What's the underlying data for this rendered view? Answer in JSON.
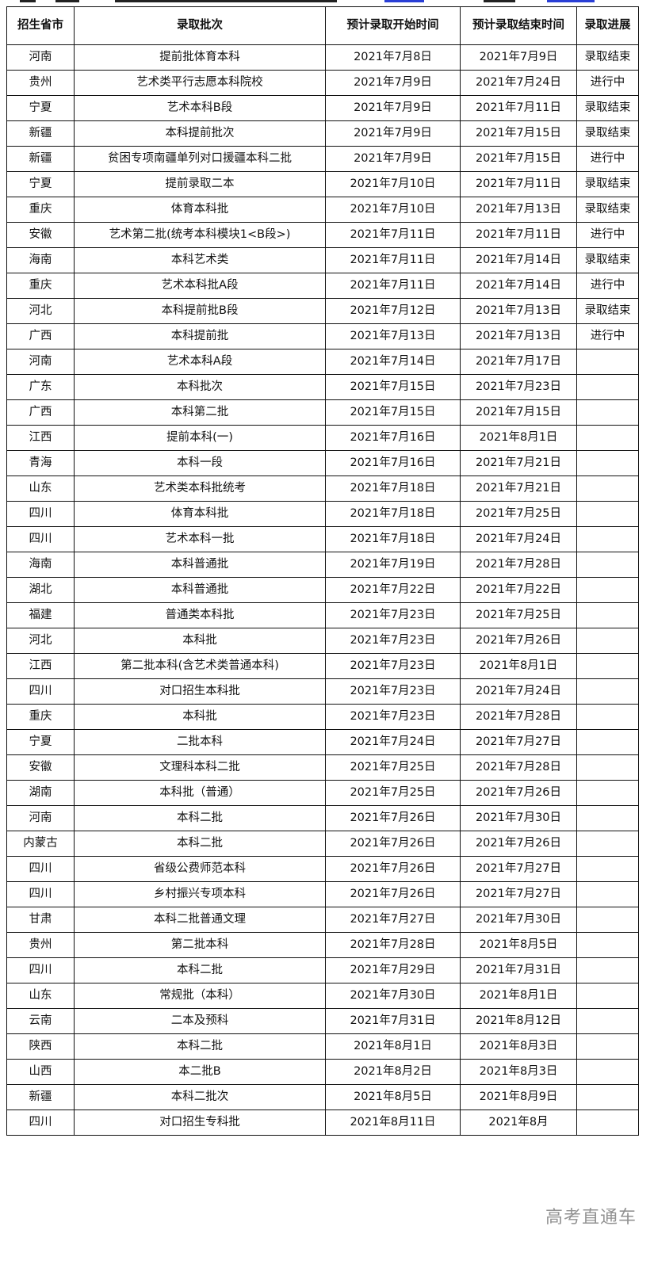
{
  "table": {
    "headers": [
      "招生省市",
      "录取批次",
      "预计录取开始时间",
      "预计录取结束时间",
      "录取进展"
    ],
    "rows": [
      [
        "河南",
        "提前批体育本科",
        "2021年7月8日",
        "2021年7月9日",
        "录取结束"
      ],
      [
        "贵州",
        "艺术类平行志愿本科院校",
        "2021年7月9日",
        "2021年7月24日",
        "进行中"
      ],
      [
        "宁夏",
        "艺术本科B段",
        "2021年7月9日",
        "2021年7月11日",
        "录取结束"
      ],
      [
        "新疆",
        "本科提前批次",
        "2021年7月9日",
        "2021年7月15日",
        "录取结束"
      ],
      [
        "新疆",
        "贫困专项南疆单列对口援疆本科二批",
        "2021年7月9日",
        "2021年7月15日",
        "进行中"
      ],
      [
        "宁夏",
        "提前录取二本",
        "2021年7月10日",
        "2021年7月11日",
        "录取结束"
      ],
      [
        "重庆",
        "体育本科批",
        "2021年7月10日",
        "2021年7月13日",
        "录取结束"
      ],
      [
        "安徽",
        "艺术第二批(统考本科模块1<B段>)",
        "2021年7月11日",
        "2021年7月11日",
        "进行中"
      ],
      [
        "海南",
        "本科艺术类",
        "2021年7月11日",
        "2021年7月14日",
        "录取结束"
      ],
      [
        "重庆",
        "艺术本科批A段",
        "2021年7月11日",
        "2021年7月14日",
        "进行中"
      ],
      [
        "河北",
        "本科提前批B段",
        "2021年7月12日",
        "2021年7月13日",
        "录取结束"
      ],
      [
        "广西",
        "本科提前批",
        "2021年7月13日",
        "2021年7月13日",
        "进行中"
      ],
      [
        "河南",
        "艺术本科A段",
        "2021年7月14日",
        "2021年7月17日",
        ""
      ],
      [
        "广东",
        "本科批次",
        "2021年7月15日",
        "2021年7月23日",
        ""
      ],
      [
        "广西",
        "本科第二批",
        "2021年7月15日",
        "2021年7月15日",
        ""
      ],
      [
        "江西",
        "提前本科(一)",
        "2021年7月16日",
        "2021年8月1日",
        ""
      ],
      [
        "青海",
        "本科一段",
        "2021年7月16日",
        "2021年7月21日",
        ""
      ],
      [
        "山东",
        "艺术类本科批统考",
        "2021年7月18日",
        "2021年7月21日",
        ""
      ],
      [
        "四川",
        "体育本科批",
        "2021年7月18日",
        "2021年7月25日",
        ""
      ],
      [
        "四川",
        "艺术本科一批",
        "2021年7月18日",
        "2021年7月24日",
        ""
      ],
      [
        "海南",
        "本科普通批",
        "2021年7月19日",
        "2021年7月28日",
        ""
      ],
      [
        "湖北",
        "本科普通批",
        "2021年7月22日",
        "2021年7月22日",
        ""
      ],
      [
        "福建",
        "普通类本科批",
        "2021年7月23日",
        "2021年7月25日",
        ""
      ],
      [
        "河北",
        "本科批",
        "2021年7月23日",
        "2021年7月26日",
        ""
      ],
      [
        "江西",
        "第二批本科(含艺术类普通本科)",
        "2021年7月23日",
        "2021年8月1日",
        ""
      ],
      [
        "四川",
        "对口招生本科批",
        "2021年7月23日",
        "2021年7月24日",
        ""
      ],
      [
        "重庆",
        "本科批",
        "2021年7月23日",
        "2021年7月28日",
        ""
      ],
      [
        "宁夏",
        "二批本科",
        "2021年7月24日",
        "2021年7月27日",
        ""
      ],
      [
        "安徽",
        "文理科本科二批",
        "2021年7月25日",
        "2021年7月28日",
        ""
      ],
      [
        "湖南",
        "本科批（普通）",
        "2021年7月25日",
        "2021年7月26日",
        ""
      ],
      [
        "河南",
        "本科二批",
        "2021年7月26日",
        "2021年7月30日",
        ""
      ],
      [
        "内蒙古",
        "本科二批",
        "2021年7月26日",
        "2021年7月26日",
        ""
      ],
      [
        "四川",
        "省级公费师范本科",
        "2021年7月26日",
        "2021年7月27日",
        ""
      ],
      [
        "四川",
        "乡村振兴专项本科",
        "2021年7月26日",
        "2021年7月27日",
        ""
      ],
      [
        "甘肃",
        "本科二批普通文理",
        "2021年7月27日",
        "2021年7月30日",
        ""
      ],
      [
        "贵州",
        "第二批本科",
        "2021年7月28日",
        "2021年8月5日",
        ""
      ],
      [
        "四川",
        "本科二批",
        "2021年7月29日",
        "2021年7月31日",
        ""
      ],
      [
        "山东",
        "常规批（本科）",
        "2021年7月30日",
        "2021年8月1日",
        ""
      ],
      [
        "云南",
        "二本及预科",
        "2021年7月31日",
        "2021年8月12日",
        ""
      ],
      [
        "陕西",
        "本科二批",
        "2021年8月1日",
        "2021年8月3日",
        ""
      ],
      [
        "山西",
        "本二批B",
        "2021年8月2日",
        "2021年8月3日",
        ""
      ],
      [
        "新疆",
        "本科二批次",
        "2021年8月5日",
        "2021年8月9日",
        ""
      ],
      [
        "四川",
        "对口招生专科批",
        "2021年8月11日",
        "2021年8月",
        ""
      ]
    ]
  },
  "watermark": "高考直通车"
}
